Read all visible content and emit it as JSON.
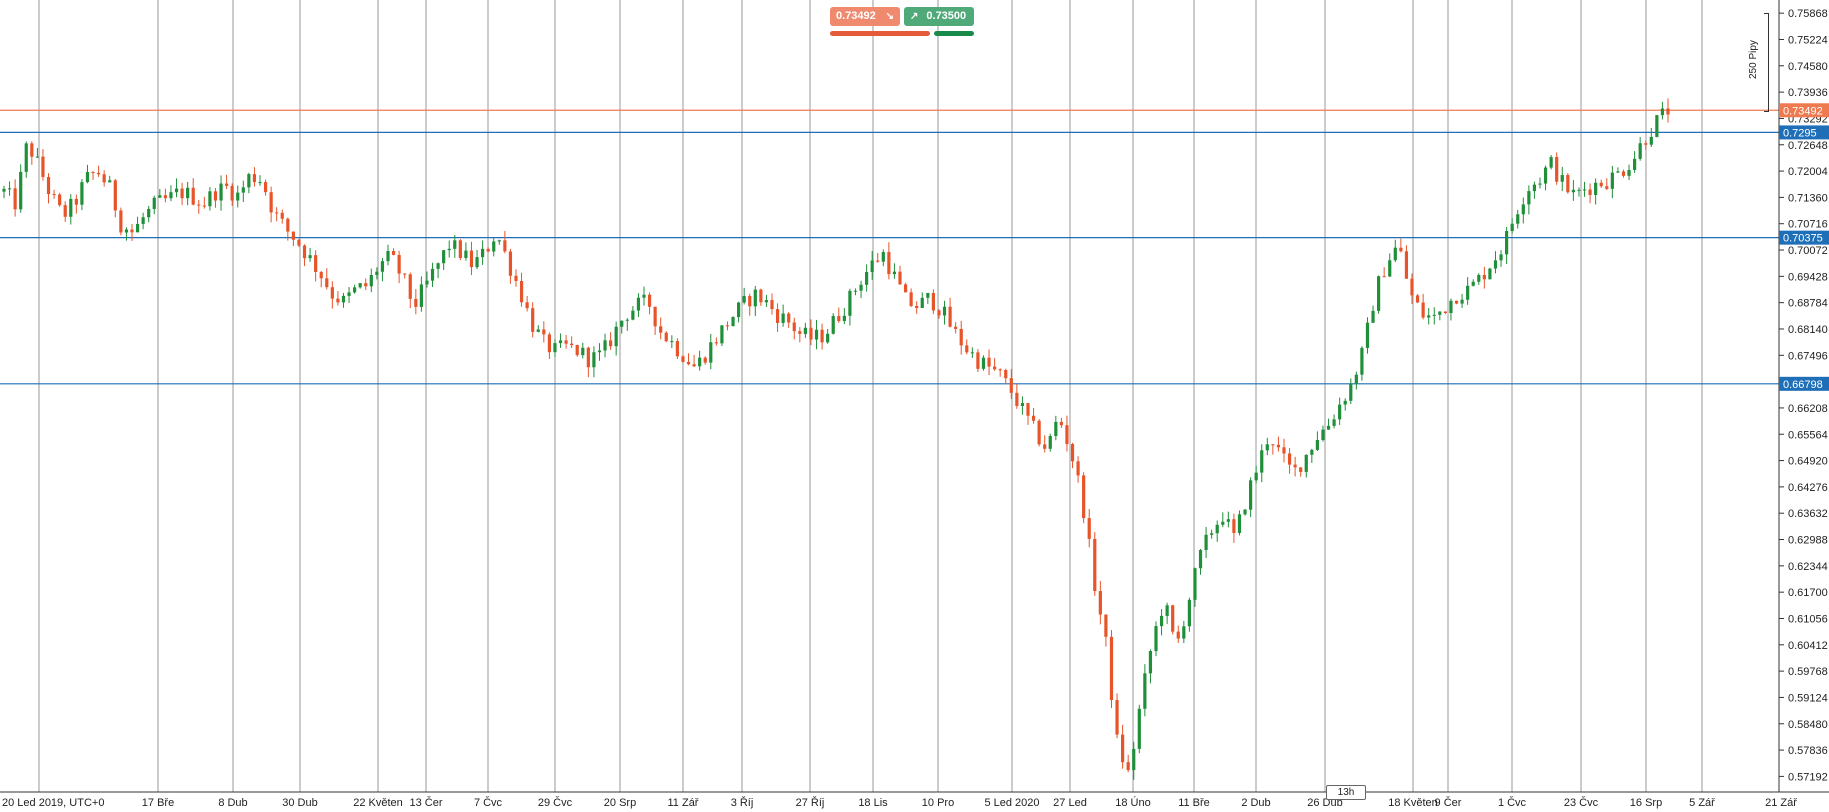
{
  "toolbar": {
    "sell_price": "0.73492",
    "buy_price": "0.73500",
    "sell_icon": "down-right-arrow-icon",
    "buy_icon": "up-right-arrow-icon",
    "sell_color": "#e35b3a",
    "buy_color": "#1a8a4a"
  },
  "measure": {
    "pips_label": "250 Pipy"
  },
  "timeframe": {
    "label": "13h"
  },
  "chart_data": {
    "type": "candlestick",
    "y_ticks": [
      "0.75868",
      "0.75224",
      "0.74580",
      "0.73936",
      "0.73292",
      "0.72648",
      "0.72004",
      "0.71360",
      "0.70716",
      "0.70072",
      "0.69428",
      "0.68784",
      "0.68140",
      "0.67496",
      "0.66852",
      "0.66208",
      "0.65564",
      "0.64920",
      "0.64276",
      "0.63632",
      "0.62988",
      "0.62344",
      "0.61700",
      "0.61056",
      "0.60412",
      "0.59768",
      "0.59124",
      "0.58480",
      "0.57836",
      "0.57192"
    ],
    "ylim": [
      0.5681,
      0.7619
    ],
    "x_ticks": [
      "20 Led 2019, UTC+0",
      "17 Bře",
      "8 Dub",
      "30 Dub",
      "22 Květen",
      "13 Čer",
      "7 Čvc",
      "29 Čvc",
      "20 Srp",
      "11 Zář",
      "3 Říj",
      "27 Říj",
      "18 Lis",
      "10 Pro",
      "5 Led 2020",
      "27 Led",
      "18 Úno",
      "11 Bře",
      "2 Dub",
      "26 Dub",
      "18 Květen",
      "9 Čer",
      "1 Čvc",
      "23 Čvc",
      "16 Srp",
      "5 Zář",
      "21 Zář"
    ],
    "horizontal_lines": [
      {
        "value": 0.73492,
        "label": "0.73492",
        "color": "#f07a50",
        "type": "current-price"
      },
      {
        "value": 0.7295,
        "label": "0.7295",
        "color": "#1f6fb8",
        "type": "level"
      },
      {
        "value": 0.70375,
        "label": "0.70375",
        "color": "#1f6fb8",
        "type": "level"
      },
      {
        "value": 0.66798,
        "label": "0.66798",
        "color": "#1f6fb8",
        "type": "level"
      }
    ],
    "path_close": [
      0.715,
      0.712,
      0.727,
      0.721,
      0.714,
      0.709,
      0.712,
      0.718,
      0.72,
      0.716,
      0.707,
      0.705,
      0.709,
      0.712,
      0.713,
      0.715,
      0.714,
      0.712,
      0.715,
      0.716,
      0.714,
      0.719,
      0.718,
      0.71,
      0.706,
      0.703,
      0.699,
      0.695,
      0.69,
      0.688,
      0.691,
      0.692,
      0.697,
      0.699,
      0.694,
      0.687,
      0.692,
      0.697,
      0.702,
      0.7,
      0.697,
      0.7,
      0.705,
      0.698,
      0.691,
      0.683,
      0.678,
      0.676,
      0.677,
      0.676,
      0.674,
      0.675,
      0.68,
      0.685,
      0.687,
      0.688,
      0.681,
      0.678,
      0.675,
      0.672,
      0.676,
      0.68,
      0.684,
      0.687,
      0.69,
      0.688,
      0.685,
      0.683,
      0.68,
      0.679,
      0.68,
      0.684,
      0.688,
      0.693,
      0.697,
      0.7,
      0.694,
      0.688,
      0.687,
      0.689,
      0.686,
      0.681,
      0.677,
      0.674,
      0.672,
      0.67,
      0.666,
      0.661,
      0.656,
      0.652,
      0.66,
      0.652,
      0.64,
      0.62,
      0.605,
      0.58,
      0.572,
      0.59,
      0.605,
      0.615,
      0.603,
      0.614,
      0.625,
      0.632,
      0.636,
      0.63,
      0.64,
      0.648,
      0.656,
      0.65,
      0.646,
      0.65,
      0.655,
      0.658,
      0.663,
      0.668,
      0.676,
      0.69,
      0.698,
      0.702,
      0.69,
      0.685,
      0.684,
      0.687,
      0.69,
      0.691,
      0.694,
      0.698,
      0.702,
      0.71,
      0.716,
      0.718,
      0.722,
      0.717,
      0.714,
      0.716,
      0.717,
      0.718,
      0.72,
      0.723,
      0.728,
      0.732,
      0.735
    ]
  }
}
